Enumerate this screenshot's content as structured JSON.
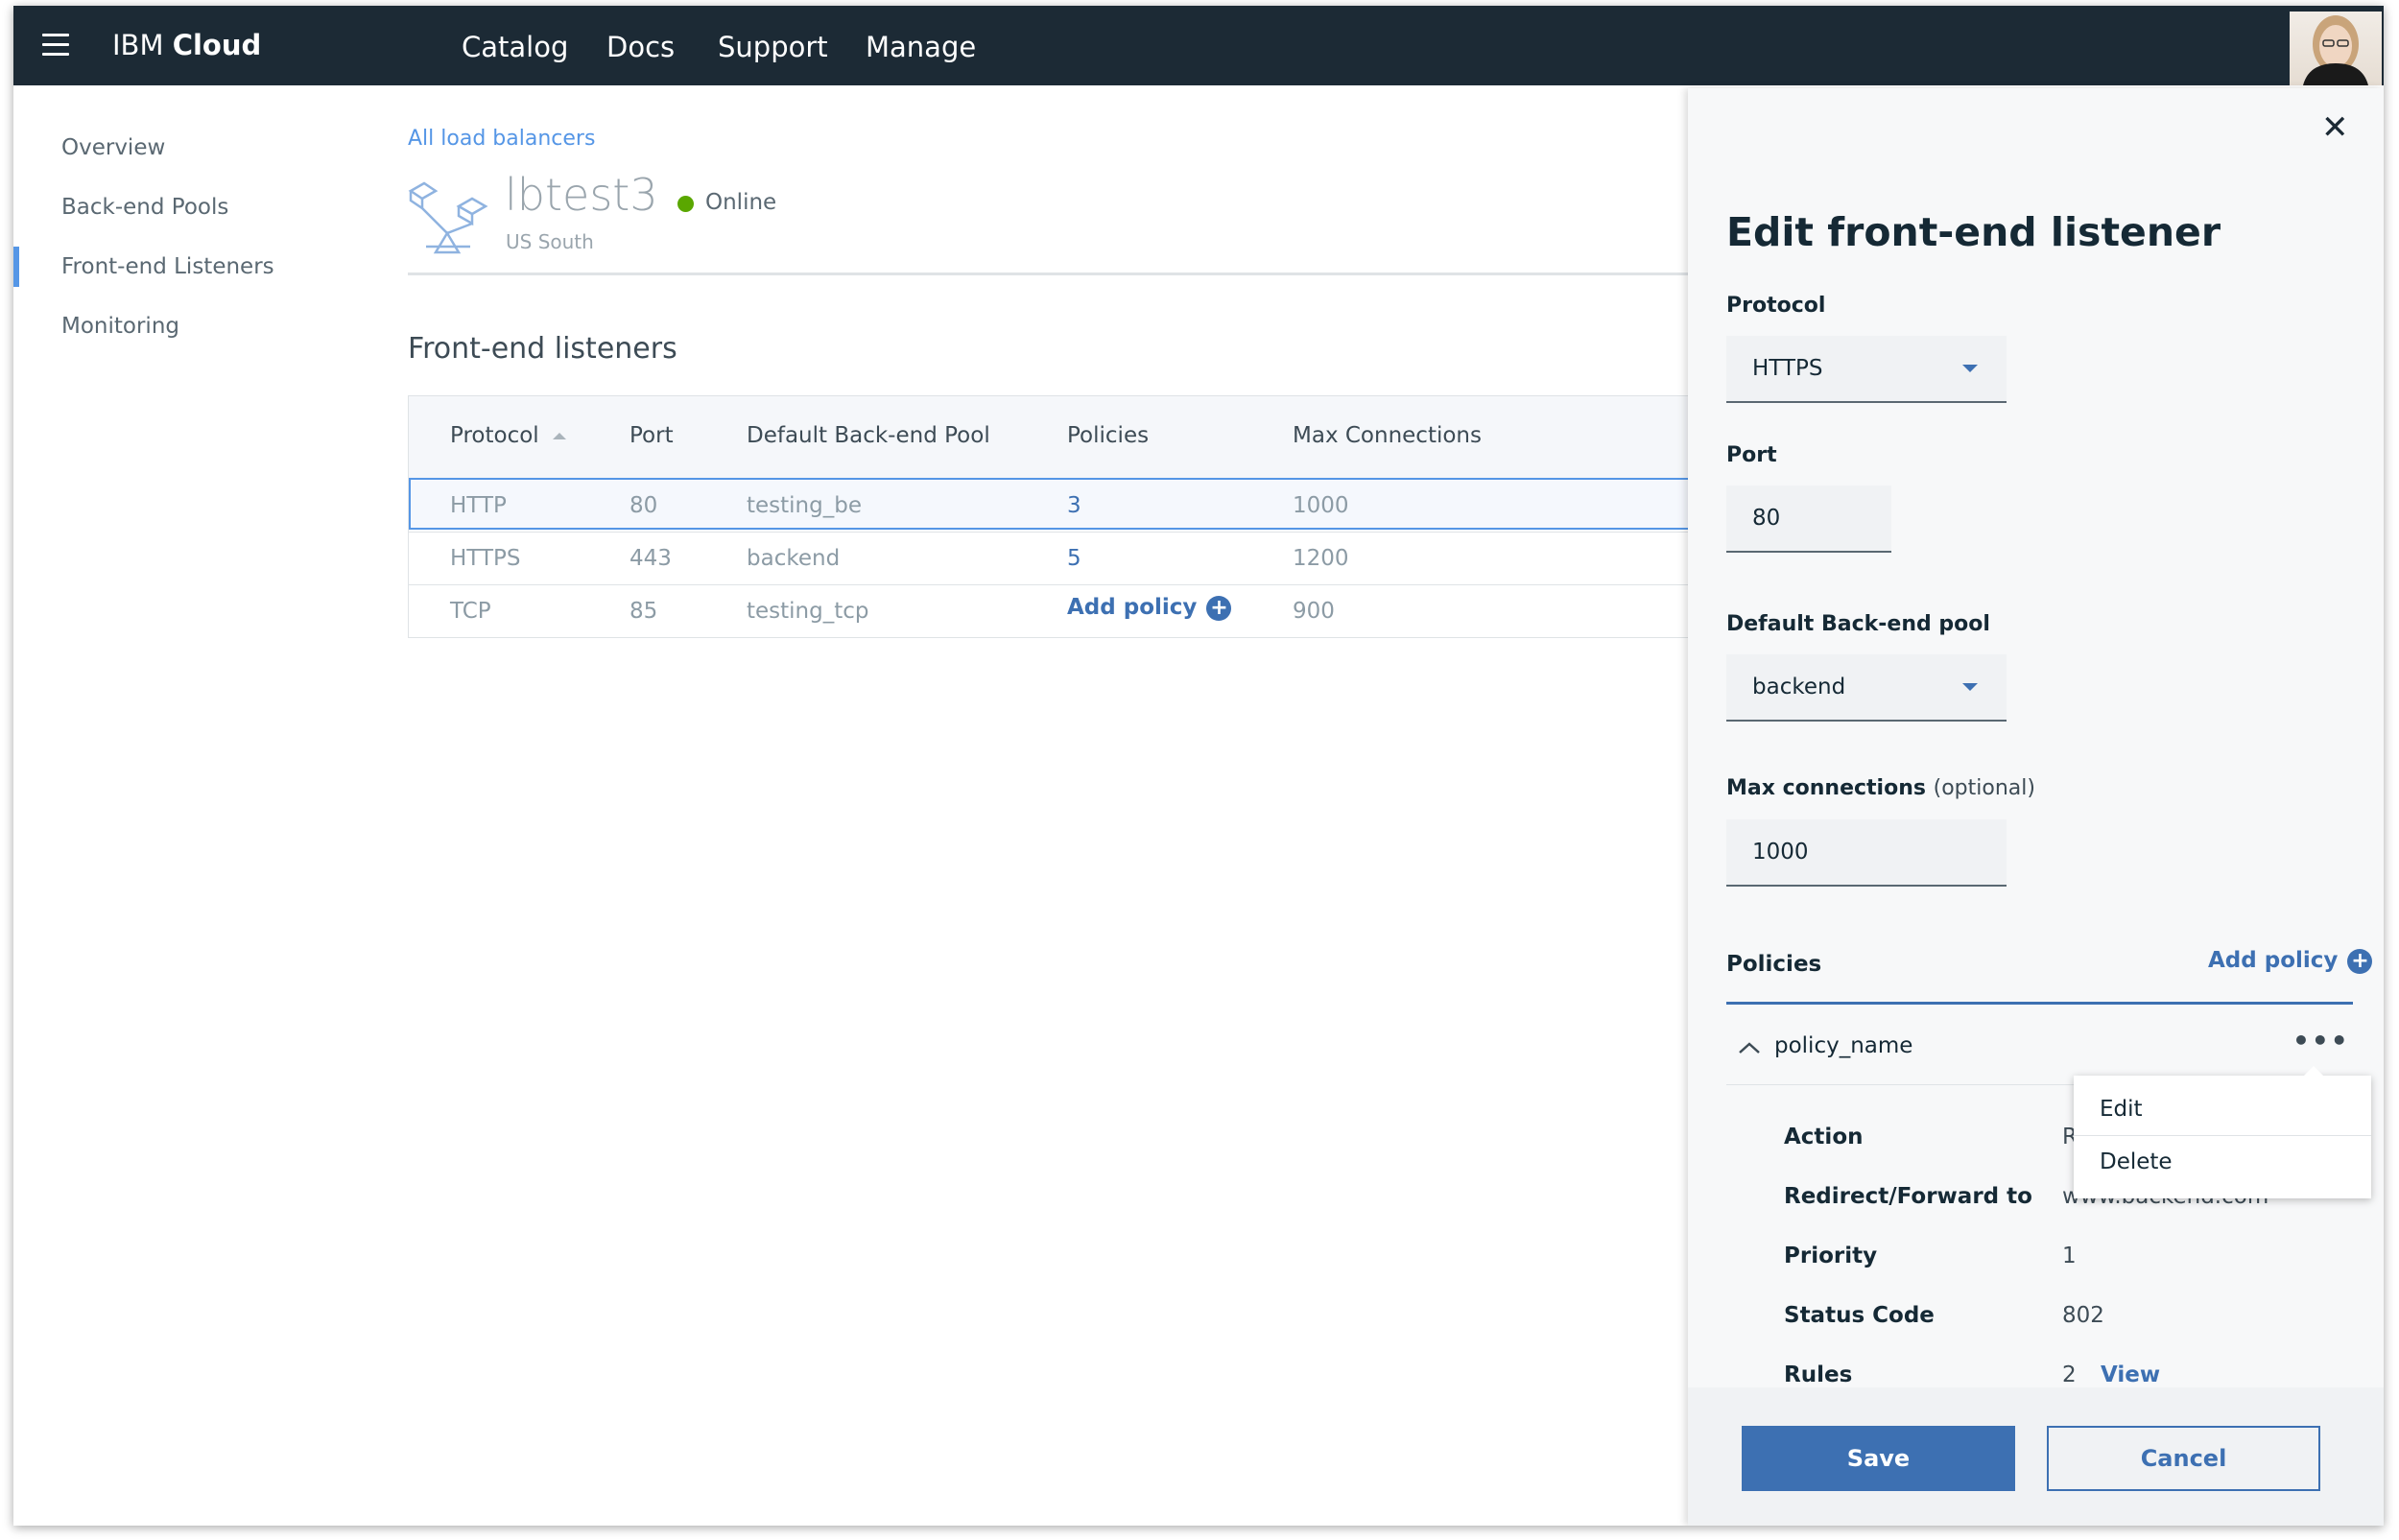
{
  "topbar": {
    "brand_prefix": "IBM",
    "brand_bold": "Cloud",
    "nav": [
      "Catalog",
      "Docs",
      "Support",
      "Manage"
    ]
  },
  "sidebar": {
    "items": [
      "Overview",
      "Back-end Pools",
      "Front-end Listeners",
      "Monitoring"
    ],
    "active": "Front-end Listeners"
  },
  "main": {
    "breadcrumb": "All load balancers",
    "lb_name": "lbtest3",
    "lb_region": "US South",
    "status": "Online",
    "section_title": "Front-end listeners",
    "columns": [
      "Protocol",
      "Port",
      "Default Back-end Pool",
      "Policies",
      "Max Connections"
    ],
    "rows": [
      {
        "protocol": "HTTP",
        "port": "80",
        "pool": "testing_be",
        "policies": "3",
        "max": "1000"
      },
      {
        "protocol": "HTTPS",
        "port": "443",
        "pool": "backend",
        "policies": "5",
        "max": "1200"
      },
      {
        "protocol": "TCP",
        "port": "85",
        "pool": "testing_tcp",
        "policies": "Add policy",
        "max": "900"
      }
    ]
  },
  "panel": {
    "title": "Edit front-end listener",
    "protocol_label": "Protocol",
    "protocol_value": "HTTPS",
    "port_label": "Port",
    "port_value": "80",
    "pool_label": "Default Back-end pool",
    "pool_value": "backend",
    "max_label": "Max connections",
    "max_optional": "(optional)",
    "max_value": "1000",
    "policies_label": "Policies",
    "add_policy": "Add policy",
    "policy_name": "policy_name",
    "details": {
      "action_label": "Action",
      "action_value": "R",
      "redirect_label": "Redirect/Forward to",
      "redirect_value": "www.backend.com",
      "priority_label": "Priority",
      "priority_value": "1",
      "status_label": "Status Code",
      "status_value": "802",
      "rules_label": "Rules",
      "rules_value": "2",
      "rules_link": "View"
    },
    "menu": {
      "edit": "Edit",
      "delete": "Delete"
    },
    "save": "Save",
    "cancel": "Cancel"
  },
  "colors": {
    "topbar": "#1c2a35",
    "accent": "#3d70b2",
    "link": "#5596e6",
    "online": "#5aa700"
  }
}
